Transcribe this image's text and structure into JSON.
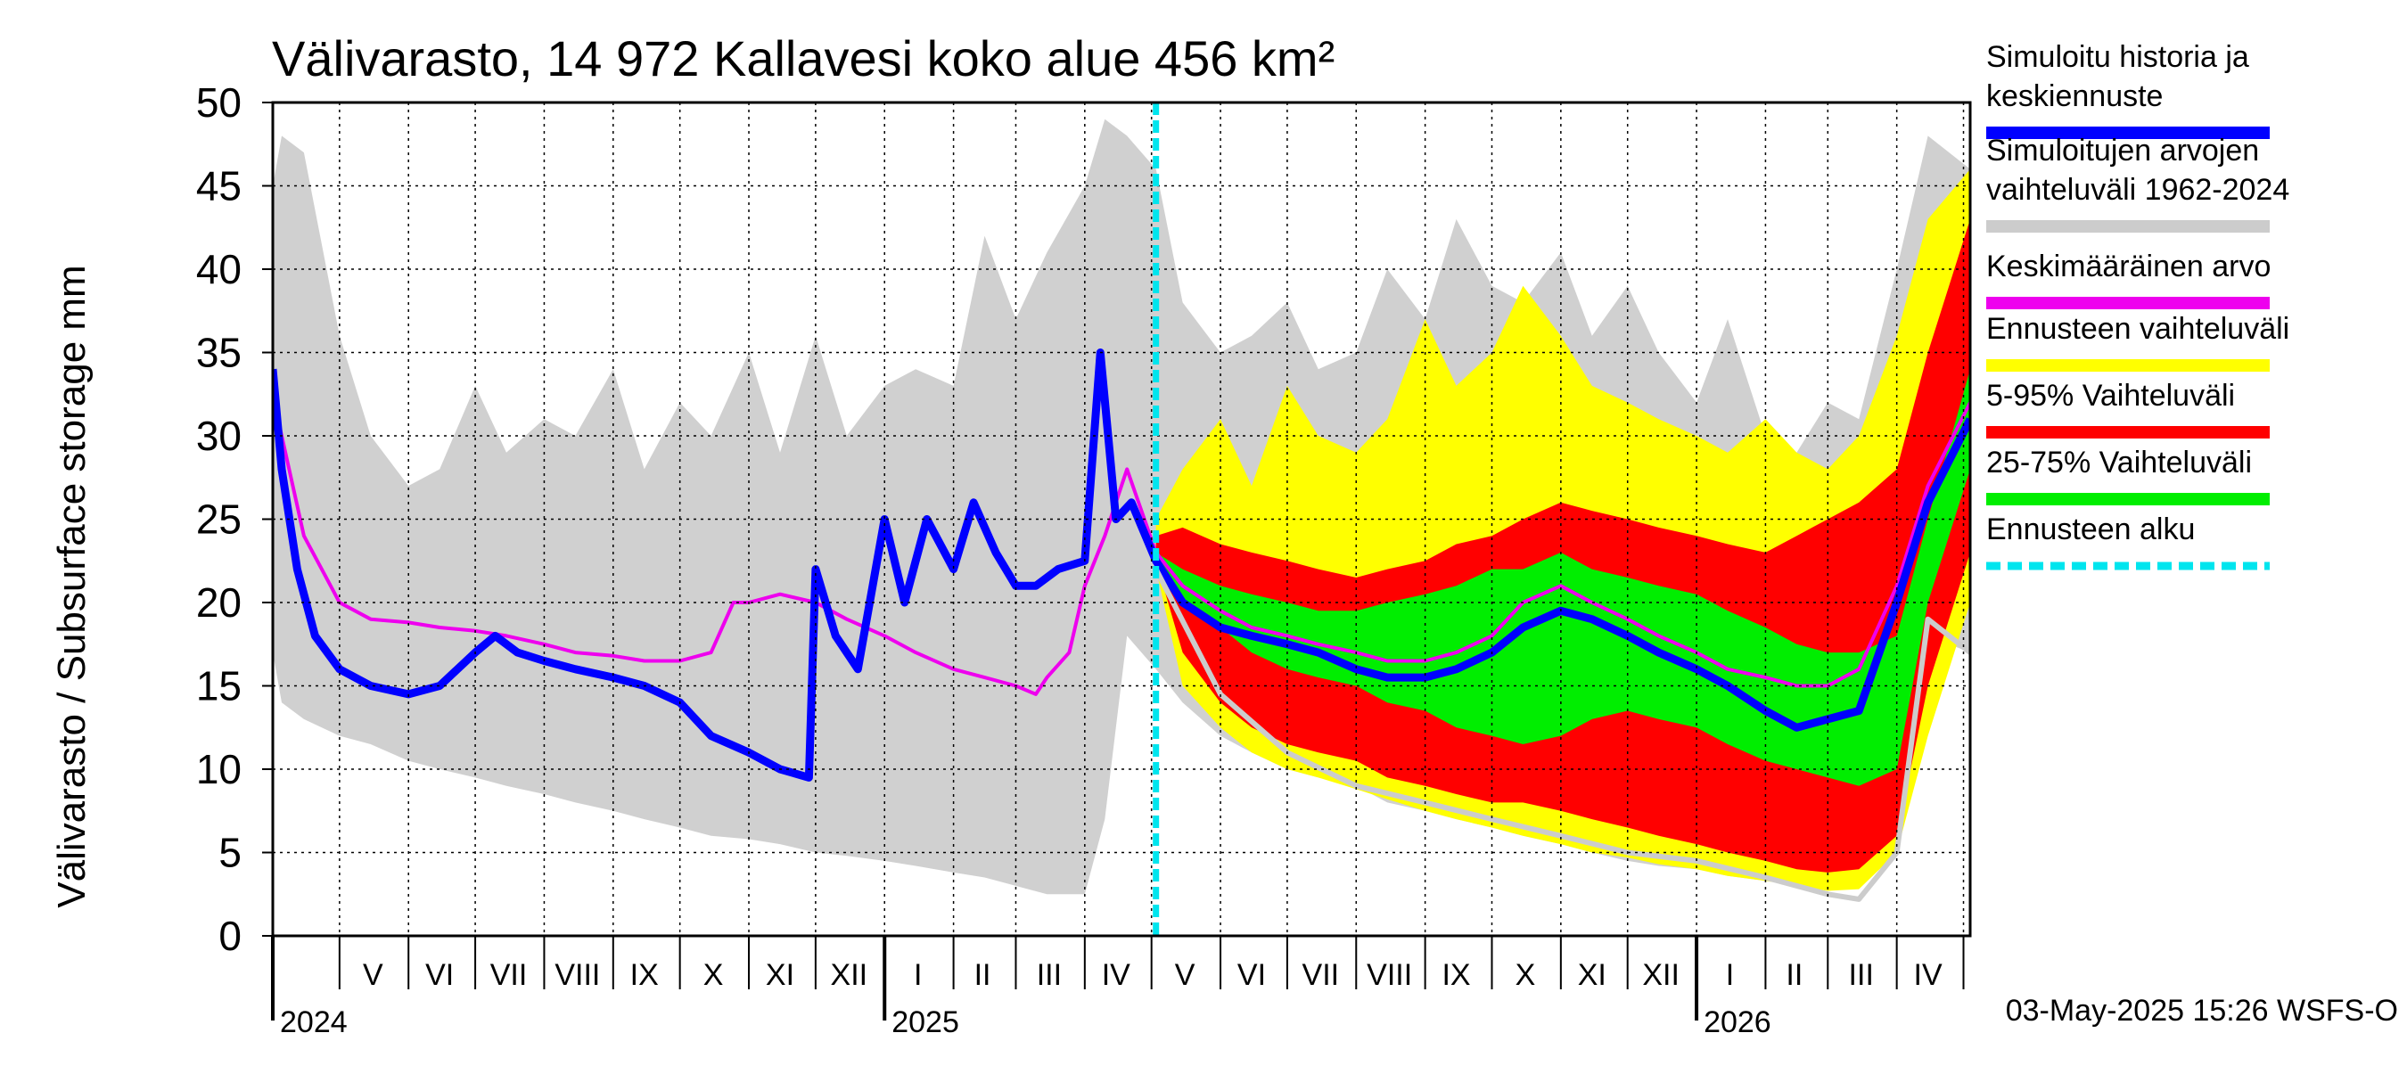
{
  "chart_data": {
    "type": "area",
    "title": "Välivarasto, 14 972 Kallavesi koko alue 456 km²",
    "ylabel": "Välivarasto / Subsurface storage  mm",
    "ylim": [
      0,
      50
    ],
    "yticks": [
      0,
      5,
      10,
      15,
      20,
      25,
      30,
      35,
      40,
      45,
      50
    ],
    "x_range": [
      "2024-04-01",
      "2026-05-04"
    ],
    "forecast_start": "2025-05-03",
    "grid": true,
    "legend_position": "right",
    "timestamp": "03-May-2025 15:26 WSFS-O",
    "month_labels": [
      {
        "label": "V",
        "date": "2024-05-16"
      },
      {
        "label": "VI",
        "date": "2024-06-15"
      },
      {
        "label": "VII",
        "date": "2024-07-16"
      },
      {
        "label": "VIII",
        "date": "2024-08-16"
      },
      {
        "label": "IX",
        "date": "2024-09-15"
      },
      {
        "label": "X",
        "date": "2024-10-16"
      },
      {
        "label": "XI",
        "date": "2024-11-15"
      },
      {
        "label": "XII",
        "date": "2024-12-16"
      },
      {
        "label": "I",
        "date": "2025-01-16"
      },
      {
        "label": "II",
        "date": "2025-02-14"
      },
      {
        "label": "III",
        "date": "2025-03-16"
      },
      {
        "label": "IV",
        "date": "2025-04-15"
      },
      {
        "label": "V",
        "date": "2025-05-16"
      },
      {
        "label": "VI",
        "date": "2025-06-15"
      },
      {
        "label": "VII",
        "date": "2025-07-16"
      },
      {
        "label": "VIII",
        "date": "2025-08-16"
      },
      {
        "label": "IX",
        "date": "2025-09-15"
      },
      {
        "label": "X",
        "date": "2025-10-16"
      },
      {
        "label": "XI",
        "date": "2025-11-15"
      },
      {
        "label": "XII",
        "date": "2025-12-16"
      },
      {
        "label": "I",
        "date": "2026-01-16"
      },
      {
        "label": "II",
        "date": "2026-02-14"
      },
      {
        "label": "III",
        "date": "2026-03-16"
      },
      {
        "label": "IV",
        "date": "2026-04-15"
      }
    ],
    "year_labels": [
      {
        "label": "2024",
        "date": "2024-04-01"
      },
      {
        "label": "2025",
        "date": "2025-01-01"
      },
      {
        "label": "2026",
        "date": "2026-01-01"
      }
    ],
    "legend": [
      {
        "label": "Simuloitu historia ja\nkeskiennuste",
        "color": "#0000ff",
        "style": "line"
      },
      {
        "label": "Simuloitujen arvojen\nvaihteluväli 1962-2024",
        "color": "#cccccc",
        "style": "line"
      },
      {
        "label": "Keskimääräinen arvo",
        "color": "#ee00ee",
        "style": "line"
      },
      {
        "label": "Ennusteen vaihteluväli",
        "color": "#ffff00",
        "style": "line"
      },
      {
        "label": "5-95% Vaihteluväli",
        "color": "#ff0000",
        "style": "line"
      },
      {
        "label": "25-75% Vaihteluväli",
        "color": "#00ee00",
        "style": "line"
      },
      {
        "label": "Ennusteen alku",
        "color": "#00e5ee",
        "style": "dashed"
      }
    ],
    "series": [
      {
        "name": "Simulated historical range 1962-2024",
        "kind": "band",
        "color": "#d0d0d0",
        "x": [
          "2024-04-01",
          "2024-04-05",
          "2024-04-15",
          "2024-05-01",
          "2024-05-15",
          "2024-06-01",
          "2024-06-15",
          "2024-07-01",
          "2024-07-15",
          "2024-08-01",
          "2024-08-15",
          "2024-09-01",
          "2024-09-15",
          "2024-10-01",
          "2024-10-15",
          "2024-11-01",
          "2024-11-15",
          "2024-12-01",
          "2024-12-15",
          "2025-01-01",
          "2025-01-15",
          "2025-02-01",
          "2025-02-15",
          "2025-03-01",
          "2025-03-15",
          "2025-04-01",
          "2025-04-10",
          "2025-04-20",
          "2025-05-03",
          "2025-05-15",
          "2025-06-01",
          "2025-06-15",
          "2025-07-01",
          "2025-07-15",
          "2025-08-01",
          "2025-08-15",
          "2025-09-01",
          "2025-09-15",
          "2025-10-01",
          "2025-10-15",
          "2025-11-01",
          "2025-11-15",
          "2025-12-01",
          "2025-12-15",
          "2026-01-01",
          "2026-01-15",
          "2026-02-01",
          "2026-02-15",
          "2026-03-01",
          "2026-03-15",
          "2026-04-01",
          "2026-04-15",
          "2026-05-04"
        ],
        "lower": [
          17,
          14,
          13,
          12,
          11.5,
          10.5,
          10,
          9.5,
          9,
          8.5,
          8,
          7.5,
          7,
          6.5,
          6,
          5.8,
          5.5,
          5,
          4.8,
          4.5,
          4.2,
          3.8,
          3.5,
          3,
          2.5,
          2.5,
          7,
          18,
          16,
          14,
          12,
          11,
          10,
          9.5,
          9,
          8,
          7.5,
          7,
          6.5,
          6,
          5.5,
          5,
          4.5,
          4.2,
          4,
          3.6,
          3.3,
          3,
          2.8,
          3,
          8,
          18,
          17
        ],
        "upper": [
          45,
          48,
          47,
          36,
          30,
          27,
          28,
          33,
          29,
          31,
          30,
          34,
          28,
          32,
          30,
          35,
          29,
          36,
          30,
          33,
          34,
          33,
          42,
          37,
          41,
          45,
          49,
          48,
          46,
          38,
          35,
          36,
          38,
          34,
          35,
          40,
          37,
          43,
          39,
          38,
          41,
          36,
          39,
          35,
          32,
          37,
          30,
          29,
          32,
          31,
          40,
          48,
          46
        ]
      },
      {
        "name": "Forecast range",
        "kind": "band",
        "color": "#ffff00",
        "x": [
          "2025-05-03",
          "2025-05-15",
          "2025-06-01",
          "2025-06-15",
          "2025-07-01",
          "2025-07-15",
          "2025-08-01",
          "2025-08-15",
          "2025-09-01",
          "2025-09-15",
          "2025-10-01",
          "2025-10-15",
          "2025-11-01",
          "2025-11-15",
          "2025-12-01",
          "2025-12-15",
          "2026-01-01",
          "2026-01-15",
          "2026-02-01",
          "2026-02-15",
          "2026-03-01",
          "2026-03-15",
          "2026-04-01",
          "2026-04-15",
          "2026-05-04"
        ],
        "lower": [
          22,
          15,
          12.5,
          11,
          10,
          9.5,
          8.8,
          8.2,
          7.5,
          7,
          6.5,
          6,
          5.5,
          5,
          4.7,
          4.3,
          4,
          3.6,
          3.3,
          3,
          2.7,
          2.8,
          5,
          12,
          20
        ],
        "upper": [
          25,
          28,
          31,
          27,
          33,
          30,
          29,
          31,
          37,
          33,
          35,
          39,
          36,
          33,
          32,
          31,
          30,
          29,
          31,
          29,
          28,
          30,
          36,
          43,
          46
        ]
      },
      {
        "name": "5-95% range",
        "kind": "band",
        "color": "#ff0000",
        "x": [
          "2025-05-03",
          "2025-05-15",
          "2025-06-01",
          "2025-06-15",
          "2025-07-01",
          "2025-07-15",
          "2025-08-01",
          "2025-08-15",
          "2025-09-01",
          "2025-09-15",
          "2025-10-01",
          "2025-10-15",
          "2025-11-01",
          "2025-11-15",
          "2025-12-01",
          "2025-12-15",
          "2026-01-01",
          "2026-01-15",
          "2026-02-01",
          "2026-02-15",
          "2026-03-01",
          "2026-03-15",
          "2026-04-01",
          "2026-04-15",
          "2026-05-04"
        ],
        "lower": [
          22.5,
          17,
          14,
          12.5,
          11.5,
          11,
          10.5,
          9.5,
          9,
          8.5,
          8,
          8,
          7.5,
          7,
          6.5,
          6,
          5.5,
          5,
          4.5,
          4,
          3.8,
          4,
          6,
          15,
          23
        ],
        "upper": [
          24,
          24.5,
          23.5,
          23,
          22.5,
          22,
          21.5,
          22,
          22.5,
          23.5,
          24,
          25,
          26,
          25.5,
          25,
          24.5,
          24,
          23.5,
          23,
          24,
          25,
          26,
          28,
          35,
          43
        ]
      },
      {
        "name": "25-75% range",
        "kind": "band",
        "color": "#00ee00",
        "x": [
          "2025-05-03",
          "2025-05-15",
          "2025-06-01",
          "2025-06-15",
          "2025-07-01",
          "2025-07-15",
          "2025-08-01",
          "2025-08-15",
          "2025-09-01",
          "2025-09-15",
          "2025-10-01",
          "2025-10-15",
          "2025-11-01",
          "2025-11-15",
          "2025-12-01",
          "2025-12-15",
          "2026-01-01",
          "2026-01-15",
          "2026-02-01",
          "2026-02-15",
          "2026-03-01",
          "2026-03-15",
          "2026-04-01",
          "2026-04-15",
          "2026-05-04"
        ],
        "lower": [
          22.5,
          20,
          18.5,
          17,
          16,
          15.5,
          15,
          14,
          13.5,
          12.5,
          12,
          11.5,
          12,
          13,
          13.5,
          13,
          12.5,
          11.5,
          10.5,
          10,
          9.5,
          9,
          10,
          20,
          28
        ],
        "upper": [
          23,
          22,
          21,
          20.5,
          20,
          19.5,
          19.5,
          20,
          20.5,
          21,
          22,
          22,
          23,
          22,
          21.5,
          21,
          20.5,
          19.5,
          18.5,
          17.5,
          17,
          17,
          18,
          25,
          34
        ]
      },
      {
        "name": "Mean value",
        "kind": "line",
        "color": "#ee00ee",
        "x": [
          "2024-04-01",
          "2024-04-05",
          "2024-04-15",
          "2024-05-01",
          "2024-05-15",
          "2024-06-01",
          "2024-06-15",
          "2024-07-01",
          "2024-07-15",
          "2024-08-01",
          "2024-08-15",
          "2024-09-01",
          "2024-09-15",
          "2024-10-01",
          "2024-10-15",
          "2024-10-25",
          "2024-11-01",
          "2024-11-15",
          "2024-12-01",
          "2024-12-15",
          "2025-01-01",
          "2025-01-15",
          "2025-02-01",
          "2025-02-15",
          "2025-03-01",
          "2025-03-10",
          "2025-03-15",
          "2025-03-25",
          "2025-04-01",
          "2025-04-10",
          "2025-04-20",
          "2025-05-03",
          "2025-05-15",
          "2025-06-01",
          "2025-06-15",
          "2025-07-01",
          "2025-07-15",
          "2025-08-01",
          "2025-08-15",
          "2025-09-01",
          "2025-09-15",
          "2025-10-01",
          "2025-10-15",
          "2025-11-01",
          "2025-11-15",
          "2025-12-01",
          "2025-12-15",
          "2026-01-01",
          "2026-01-15",
          "2026-02-01",
          "2026-02-15",
          "2026-03-01",
          "2026-03-15",
          "2026-04-01",
          "2026-04-15",
          "2026-05-04"
        ],
        "y": [
          32.5,
          30,
          24,
          20,
          19,
          18.8,
          18.5,
          18.3,
          18,
          17.5,
          17,
          16.8,
          16.5,
          16.5,
          17,
          20,
          20,
          20.5,
          20,
          19,
          18,
          17,
          16,
          15.5,
          15,
          14.5,
          15.5,
          17,
          21,
          24,
          28,
          23,
          21,
          19.5,
          18.5,
          18,
          17.5,
          17,
          16.5,
          16.5,
          17,
          18,
          20,
          21,
          20,
          19,
          18,
          17,
          16,
          15.5,
          15,
          15,
          16,
          21,
          27,
          32
        ]
      },
      {
        "name": "Simulated history and mean forecast",
        "kind": "line",
        "color": "#0000ff",
        "x": [
          "2024-04-01",
          "2024-04-05",
          "2024-04-12",
          "2024-04-20",
          "2024-05-01",
          "2024-05-15",
          "2024-06-01",
          "2024-06-15",
          "2024-07-01",
          "2024-07-10",
          "2024-07-20",
          "2024-08-01",
          "2024-08-15",
          "2024-09-01",
          "2024-09-15",
          "2024-10-01",
          "2024-10-15",
          "2024-11-01",
          "2024-11-15",
          "2024-11-28",
          "2024-12-01",
          "2024-12-10",
          "2024-12-20",
          "2025-01-01",
          "2025-01-10",
          "2025-01-20",
          "2025-02-01",
          "2025-02-10",
          "2025-02-20",
          "2025-03-01",
          "2025-03-10",
          "2025-03-20",
          "2025-04-01",
          "2025-04-08",
          "2025-04-15",
          "2025-04-22",
          "2025-05-03",
          "2025-05-15",
          "2025-06-01",
          "2025-06-15",
          "2025-07-01",
          "2025-07-15",
          "2025-08-01",
          "2025-08-15",
          "2025-09-01",
          "2025-09-15",
          "2025-10-01",
          "2025-10-15",
          "2025-11-01",
          "2025-11-15",
          "2025-12-01",
          "2025-12-15",
          "2026-01-01",
          "2026-01-15",
          "2026-02-01",
          "2026-02-15",
          "2026-03-01",
          "2026-03-15",
          "2026-04-01",
          "2026-04-15",
          "2026-05-04"
        ],
        "y": [
          34,
          28,
          22,
          18,
          16,
          15,
          14.5,
          15,
          17,
          18,
          17,
          16.5,
          16,
          15.5,
          15,
          14,
          12,
          11,
          10,
          9.5,
          22,
          18,
          16,
          25,
          20,
          25,
          22,
          26,
          23,
          21,
          21,
          22,
          22.5,
          35,
          25,
          26,
          22.5,
          20,
          18.5,
          18,
          17.5,
          17,
          16,
          15.5,
          15.5,
          16,
          17,
          18.5,
          19.5,
          19,
          18,
          17,
          16,
          15,
          13.5,
          12.5,
          13,
          13.5,
          20,
          26,
          31
        ]
      },
      {
        "name": "Forecast lower envelope",
        "kind": "line",
        "color": "#cccccc",
        "x": [
          "2025-05-03",
          "2025-06-01",
          "2025-07-01",
          "2025-08-01",
          "2025-09-01",
          "2025-10-01",
          "2025-11-01",
          "2025-12-01",
          "2026-01-01",
          "2026-02-01",
          "2026-03-01",
          "2026-03-15",
          "2026-04-01",
          "2026-04-15",
          "2026-05-04"
        ],
        "y": [
          22,
          14.5,
          11,
          9,
          8,
          7,
          6,
          5,
          4.5,
          3.5,
          2.5,
          2.2,
          5,
          19,
          17
        ]
      }
    ]
  }
}
